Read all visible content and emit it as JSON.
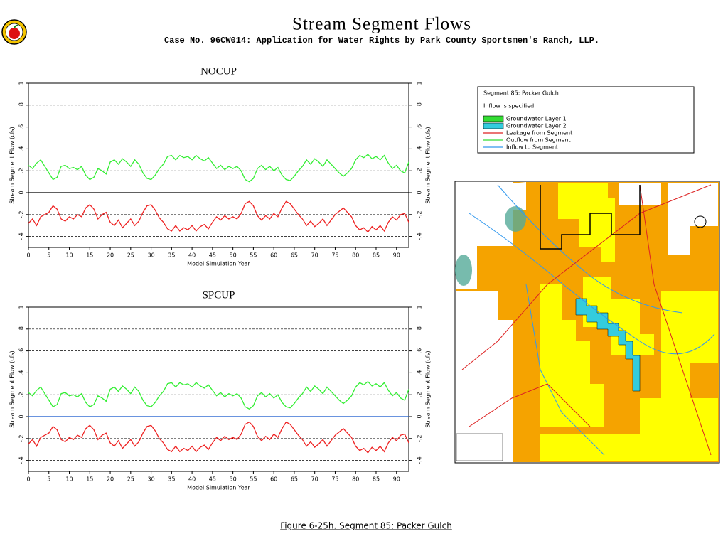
{
  "header": {
    "title": "Stream Segment Flows",
    "subtitle": "Case No. 96CW014: Application for Water Rights by Park County Sportsmen's Ranch, LLP."
  },
  "legend_box": {
    "title": "Segment 85: Packer Gulch",
    "note": "Inflow is specified.",
    "items": [
      {
        "label": "Groundwater Layer 1",
        "color": "#33dd33",
        "kind": "box"
      },
      {
        "label": "Groundwater Layer 2",
        "color": "#33ccdd",
        "kind": "box"
      },
      {
        "label": "Leakage from Segment",
        "color": "#dd2222",
        "kind": "line"
      },
      {
        "label": "Outflow from Segment",
        "color": "#33dd33",
        "kind": "line"
      },
      {
        "label": "Inflow to Segment",
        "color": "#3399ee",
        "kind": "line"
      }
    ]
  },
  "caption": "Figure 6-25h.  Segment 85: Packer Gulch",
  "chart_data": [
    {
      "type": "line",
      "title": "NOCUP",
      "xlabel": "Model Simulation Year",
      "ylabel": "Stream Segment Flow (cfs)",
      "xlim": [
        0,
        93
      ],
      "ylim": [
        -0.5,
        1
      ],
      "xticks": [
        0,
        5,
        10,
        15,
        20,
        25,
        30,
        35,
        40,
        45,
        50,
        55,
        60,
        65,
        70,
        75,
        80,
        85,
        90
      ],
      "yticks": [
        {
          "value": -0.4,
          "label": "-.4"
        },
        {
          "value": -0.2,
          "label": "-.2"
        },
        0,
        {
          "value": 0.2,
          "label": ".2"
        },
        {
          "value": 0.4,
          "label": ".4"
        },
        {
          "value": 0.6,
          "label": ".6"
        },
        {
          "value": 0.8,
          "label": ".8"
        },
        1
      ],
      "grid": true,
      "zero_line_color": "#000000",
      "x": [
        0,
        1,
        2,
        3,
        4,
        5,
        6,
        7,
        8,
        9,
        10,
        11,
        12,
        13,
        14,
        15,
        16,
        17,
        18,
        19,
        20,
        21,
        22,
        23,
        24,
        25,
        26,
        27,
        28,
        29,
        30,
        31,
        32,
        33,
        34,
        35,
        36,
        37,
        38,
        39,
        40,
        41,
        42,
        43,
        44,
        45,
        46,
        47,
        48,
        49,
        50,
        51,
        52,
        53,
        54,
        55,
        56,
        57,
        58,
        59,
        60,
        61,
        62,
        63,
        64,
        65,
        66,
        67,
        68,
        69,
        70,
        71,
        72,
        73,
        74,
        75,
        76,
        77,
        78,
        79,
        80,
        81,
        82,
        83,
        84,
        85,
        86,
        87,
        88,
        89,
        90,
        91,
        92,
        93
      ],
      "series": [
        {
          "color": "#33ee33",
          "values": [
            0.25,
            0.22,
            0.27,
            0.3,
            0.24,
            0.18,
            0.12,
            0.14,
            0.24,
            0.25,
            0.22,
            0.23,
            0.21,
            0.24,
            0.16,
            0.12,
            0.14,
            0.22,
            0.2,
            0.17,
            0.28,
            0.3,
            0.26,
            0.31,
            0.28,
            0.24,
            0.3,
            0.26,
            0.18,
            0.13,
            0.12,
            0.16,
            0.22,
            0.26,
            0.33,
            0.34,
            0.3,
            0.34,
            0.32,
            0.33,
            0.3,
            0.34,
            0.31,
            0.29,
            0.32,
            0.27,
            0.22,
            0.25,
            0.21,
            0.24,
            0.22,
            0.24,
            0.2,
            0.12,
            0.1,
            0.13,
            0.22,
            0.25,
            0.21,
            0.24,
            0.2,
            0.23,
            0.16,
            0.12,
            0.11,
            0.15,
            0.2,
            0.24,
            0.3,
            0.26,
            0.31,
            0.28,
            0.24,
            0.3,
            0.26,
            0.22,
            0.18,
            0.15,
            0.18,
            0.22,
            0.3,
            0.34,
            0.32,
            0.35,
            0.31,
            0.33,
            0.3,
            0.34,
            0.27,
            0.22,
            0.25,
            0.2,
            0.18,
            0.28
          ]
        },
        {
          "color": "#ee2222",
          "values": [
            -0.28,
            -0.24,
            -0.3,
            -0.22,
            -0.2,
            -0.18,
            -0.12,
            -0.15,
            -0.24,
            -0.26,
            -0.22,
            -0.24,
            -0.2,
            -0.22,
            -0.14,
            -0.11,
            -0.15,
            -0.24,
            -0.2,
            -0.18,
            -0.27,
            -0.3,
            -0.25,
            -0.32,
            -0.28,
            -0.24,
            -0.3,
            -0.26,
            -0.18,
            -0.12,
            -0.11,
            -0.16,
            -0.23,
            -0.27,
            -0.33,
            -0.35,
            -0.3,
            -0.35,
            -0.32,
            -0.34,
            -0.3,
            -0.35,
            -0.31,
            -0.29,
            -0.33,
            -0.27,
            -0.22,
            -0.25,
            -0.21,
            -0.24,
            -0.22,
            -0.24,
            -0.19,
            -0.1,
            -0.08,
            -0.12,
            -0.21,
            -0.25,
            -0.21,
            -0.24,
            -0.19,
            -0.22,
            -0.14,
            -0.08,
            -0.1,
            -0.15,
            -0.2,
            -0.24,
            -0.3,
            -0.26,
            -0.31,
            -0.28,
            -0.24,
            -0.3,
            -0.25,
            -0.2,
            -0.17,
            -0.14,
            -0.18,
            -0.22,
            -0.3,
            -0.34,
            -0.32,
            -0.36,
            -0.31,
            -0.34,
            -0.3,
            -0.35,
            -0.27,
            -0.22,
            -0.25,
            -0.2,
            -0.19,
            -0.27
          ]
        }
      ]
    },
    {
      "type": "line",
      "title": "SPCUP",
      "xlabel": "Model Simulation Year",
      "ylabel": "Stream Segment Flow (cfs)",
      "xlim": [
        0,
        93
      ],
      "ylim": [
        -0.5,
        1
      ],
      "xticks": [
        0,
        5,
        10,
        15,
        20,
        25,
        30,
        35,
        40,
        45,
        50,
        55,
        60,
        65,
        70,
        75,
        80,
        85,
        90
      ],
      "yticks": [
        {
          "value": -0.4,
          "label": "-.4"
        },
        {
          "value": -0.2,
          "label": "-.2"
        },
        0,
        {
          "value": 0.2,
          "label": ".2"
        },
        {
          "value": 0.4,
          "label": ".4"
        },
        {
          "value": 0.6,
          "label": ".6"
        },
        {
          "value": 0.8,
          "label": ".8"
        },
        1
      ],
      "grid": true,
      "zero_line_color": "#1155cc",
      "x": [
        0,
        1,
        2,
        3,
        4,
        5,
        6,
        7,
        8,
        9,
        10,
        11,
        12,
        13,
        14,
        15,
        16,
        17,
        18,
        19,
        20,
        21,
        22,
        23,
        24,
        25,
        26,
        27,
        28,
        29,
        30,
        31,
        32,
        33,
        34,
        35,
        36,
        37,
        38,
        39,
        40,
        41,
        42,
        43,
        44,
        45,
        46,
        47,
        48,
        49,
        50,
        51,
        52,
        53,
        54,
        55,
        56,
        57,
        58,
        59,
        60,
        61,
        62,
        63,
        64,
        65,
        66,
        67,
        68,
        69,
        70,
        71,
        72,
        73,
        74,
        75,
        76,
        77,
        78,
        79,
        80,
        81,
        82,
        83,
        84,
        85,
        86,
        87,
        88,
        89,
        90,
        91,
        92,
        93
      ],
      "series": [
        {
          "color": "#33ee33",
          "values": [
            0.22,
            0.19,
            0.24,
            0.27,
            0.21,
            0.15,
            0.09,
            0.11,
            0.21,
            0.22,
            0.19,
            0.2,
            0.18,
            0.21,
            0.13,
            0.09,
            0.11,
            0.19,
            0.17,
            0.14,
            0.25,
            0.27,
            0.23,
            0.28,
            0.25,
            0.21,
            0.27,
            0.23,
            0.15,
            0.1,
            0.09,
            0.13,
            0.19,
            0.23,
            0.3,
            0.31,
            0.27,
            0.31,
            0.29,
            0.3,
            0.27,
            0.31,
            0.28,
            0.26,
            0.29,
            0.24,
            0.19,
            0.22,
            0.18,
            0.21,
            0.19,
            0.21,
            0.17,
            0.09,
            0.07,
            0.1,
            0.19,
            0.22,
            0.18,
            0.21,
            0.17,
            0.2,
            0.13,
            0.09,
            0.08,
            0.12,
            0.17,
            0.21,
            0.27,
            0.23,
            0.28,
            0.25,
            0.21,
            0.27,
            0.23,
            0.19,
            0.15,
            0.12,
            0.15,
            0.19,
            0.27,
            0.31,
            0.29,
            0.32,
            0.28,
            0.3,
            0.27,
            0.31,
            0.24,
            0.19,
            0.22,
            0.17,
            0.15,
            0.25
          ]
        },
        {
          "color": "#ee2222",
          "values": [
            -0.25,
            -0.21,
            -0.27,
            -0.19,
            -0.17,
            -0.15,
            -0.09,
            -0.12,
            -0.21,
            -0.23,
            -0.19,
            -0.21,
            -0.17,
            -0.19,
            -0.11,
            -0.08,
            -0.12,
            -0.21,
            -0.17,
            -0.15,
            -0.24,
            -0.27,
            -0.22,
            -0.29,
            -0.25,
            -0.21,
            -0.27,
            -0.23,
            -0.15,
            -0.09,
            -0.08,
            -0.13,
            -0.2,
            -0.24,
            -0.3,
            -0.32,
            -0.27,
            -0.32,
            -0.29,
            -0.31,
            -0.27,
            -0.32,
            -0.28,
            -0.26,
            -0.3,
            -0.24,
            -0.19,
            -0.22,
            -0.18,
            -0.21,
            -0.19,
            -0.21,
            -0.16,
            -0.07,
            -0.05,
            -0.09,
            -0.18,
            -0.22,
            -0.18,
            -0.21,
            -0.16,
            -0.19,
            -0.11,
            -0.05,
            -0.07,
            -0.12,
            -0.17,
            -0.21,
            -0.27,
            -0.23,
            -0.28,
            -0.25,
            -0.21,
            -0.27,
            -0.22,
            -0.17,
            -0.14,
            -0.11,
            -0.15,
            -0.19,
            -0.27,
            -0.31,
            -0.29,
            -0.33,
            -0.28,
            -0.31,
            -0.27,
            -0.32,
            -0.24,
            -0.19,
            -0.22,
            -0.17,
            -0.16,
            -0.24
          ]
        }
      ]
    }
  ]
}
